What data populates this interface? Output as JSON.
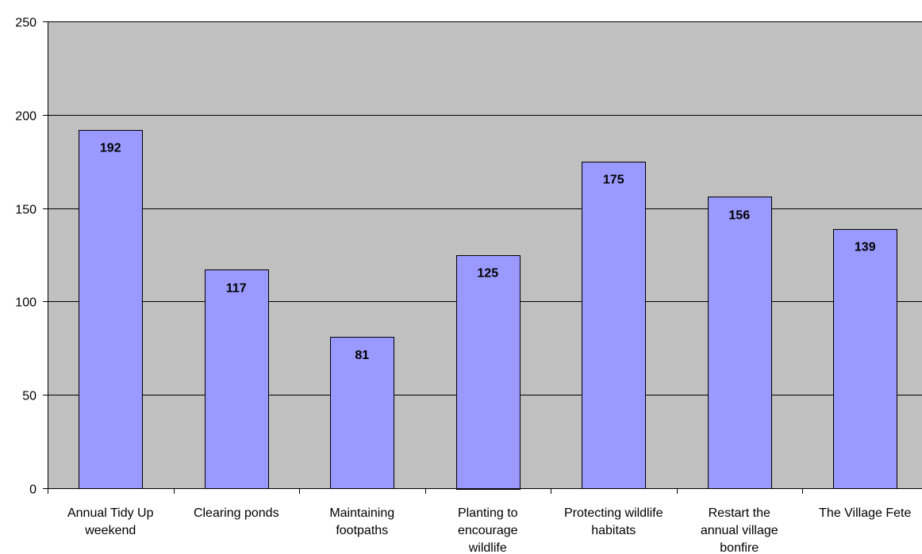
{
  "chart_data": {
    "type": "bar",
    "categories": [
      [
        "Annual Tidy Up",
        "weekend"
      ],
      [
        "Clearing ponds"
      ],
      [
        "Maintaining",
        "footpaths"
      ],
      [
        "Planting to",
        "encourage",
        "wildlife"
      ],
      [
        "Protecting wildlife",
        "habitats"
      ],
      [
        "Restart the",
        "annual village",
        "bonfire"
      ],
      [
        "The Village Fete"
      ]
    ],
    "values": [
      192,
      117,
      81,
      125,
      175,
      156,
      139
    ],
    "data_labels": [
      "192",
      "117",
      "81",
      "125",
      "175",
      "156",
      "139"
    ],
    "ylim": [
      0,
      250
    ],
    "yticks": [
      0,
      50,
      100,
      150,
      200,
      250
    ],
    "ytick_labels": [
      "0",
      "50",
      "100",
      "150",
      "200",
      "250"
    ],
    "grid": true,
    "legend": "none",
    "title": "",
    "xlabel": "",
    "ylabel": "",
    "colors": {
      "plot_background": "#c0c0c0",
      "bar_fill": "#9999ff",
      "bar_stroke": "#000000",
      "gridline": "#000000",
      "axis": "#000000"
    }
  }
}
